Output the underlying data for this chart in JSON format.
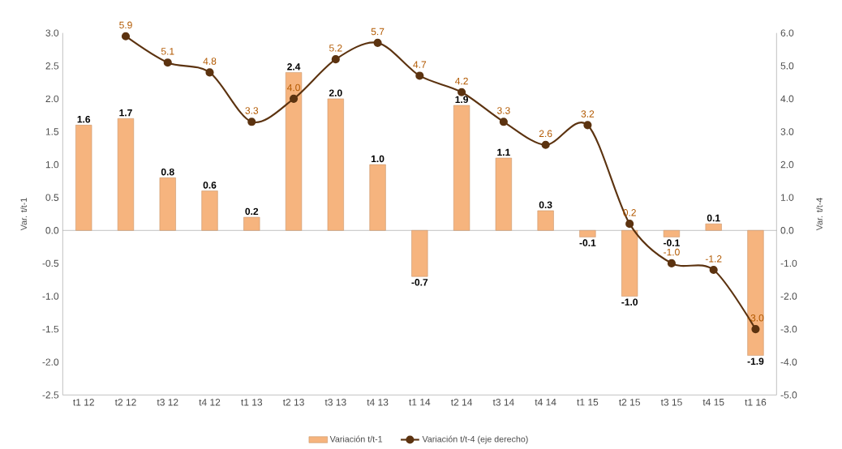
{
  "chart_data": {
    "type": "bar",
    "ylabel": "Var. t/t-1",
    "y2label": "Var. t/t-4",
    "categories": [
      "t1 12",
      "t2 12",
      "t3 12",
      "t4 12",
      "t1 13",
      "t2 13",
      "t3 13",
      "t4 13",
      "t1 14",
      "t2 14",
      "t3 14",
      "t4 14",
      "t1 15",
      "t2 15",
      "t3 15",
      "t4 15",
      "t1 16"
    ],
    "series": [
      {
        "name": "Variación t/t-1",
        "color": "#f6b47e",
        "values": [
          1.6,
          1.7,
          0.8,
          0.6,
          0.2,
          2.4,
          2.0,
          1.0,
          -0.7,
          1.9,
          1.1,
          0.3,
          -0.1,
          -1.0,
          -0.1,
          0.1,
          -1.9
        ],
        "value_labels": [
          "1.6",
          "1.7",
          "0.8",
          "0.6",
          "0.2",
          "2.4",
          "2.0",
          "1.0",
          "-0.7",
          "1.9",
          "1.1",
          "0.3",
          "-0.1",
          "-1.0",
          "-0.1",
          "0.1",
          "-1.9"
        ]
      },
      {
        "name": "Variación t/t-4 (eje derecho)",
        "type": "line",
        "axis": "y2",
        "color": "#5c3310",
        "values": [
          null,
          5.9,
          5.1,
          4.8,
          3.3,
          4.0,
          5.2,
          5.7,
          4.7,
          4.2,
          3.3,
          2.6,
          3.2,
          0.2,
          -1.0,
          -1.2,
          -3.0
        ],
        "value_labels": [
          null,
          "5.9",
          "5.1",
          "4.8",
          "3.3",
          "4.0",
          "5.2",
          "5.7",
          "4.7",
          "4.2",
          "3.3",
          "2.6",
          "3.2",
          "0.2",
          "-1.0",
          "-1.2",
          "-3.0"
        ]
      }
    ],
    "ylim": [
      -2.5,
      3.0
    ],
    "yticks": [
      {
        "value": -2.5,
        "label": "-2.5"
      },
      {
        "value": -2,
        "label": "-2.0"
      },
      {
        "value": -1.5,
        "label": "-1.5"
      },
      {
        "value": -1,
        "label": "-1.0"
      },
      {
        "value": -0.5,
        "label": "-0.5"
      },
      {
        "value": 0,
        "label": "0.0"
      },
      {
        "value": 0.5,
        "label": "0.5"
      },
      {
        "value": 1,
        "label": "1.0"
      },
      {
        "value": 1.5,
        "label": "1.5"
      },
      {
        "value": 2,
        "label": "2.0"
      },
      {
        "value": 2.5,
        "label": "2.5"
      },
      {
        "value": 3,
        "label": "3.0"
      }
    ],
    "y2lim": [
      -5.0,
      6.0
    ],
    "y2ticks": [
      {
        "value": -5,
        "label": "-5.0"
      },
      {
        "value": -4,
        "label": "-4.0"
      },
      {
        "value": -3,
        "label": "-3.0"
      },
      {
        "value": -2,
        "label": "-2.0"
      },
      {
        "value": -1,
        "label": "-1.0"
      },
      {
        "value": 0,
        "label": "0.0"
      },
      {
        "value": 1,
        "label": "1.0"
      },
      {
        "value": 2,
        "label": "2.0"
      },
      {
        "value": 3,
        "label": "3.0"
      },
      {
        "value": 4,
        "label": "4.0"
      },
      {
        "value": 5,
        "label": "5.0"
      },
      {
        "value": 6,
        "label": "6.0"
      }
    ],
    "marker": "circle",
    "legend": "bottom"
  }
}
